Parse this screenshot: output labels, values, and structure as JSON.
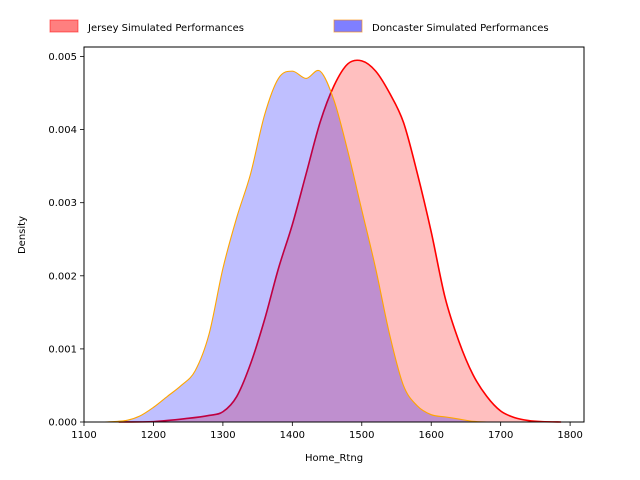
{
  "chart_data": {
    "type": "area",
    "xlabel": "Home_Rtng",
    "ylabel": "Density",
    "xlim": [
      1100,
      1820
    ],
    "ylim": [
      0,
      0.00513
    ],
    "xticks": [
      1100,
      1200,
      1300,
      1400,
      1500,
      1600,
      1700,
      1800
    ],
    "xtick_labels": [
      "1100",
      "1200",
      "1300",
      "1400",
      "1500",
      "1600",
      "1700",
      "1800"
    ],
    "yticks": [
      0,
      0.001,
      0.002,
      0.003,
      0.004,
      0.005
    ],
    "ytick_labels": [
      "0.000",
      "0.001",
      "0.002",
      "0.003",
      "0.004",
      "0.005"
    ],
    "legend_placement": "top-center, above plot",
    "grid": false,
    "series": [
      {
        "name": "Jersey Simulated Performances",
        "fill_color": "#ff0000",
        "line_color": "#ff0000",
        "fill_alpha": 0.25,
        "x": [
          1150,
          1200,
          1250,
          1280,
          1300,
          1320,
          1340,
          1360,
          1380,
          1400,
          1420,
          1440,
          1460,
          1480,
          1500,
          1520,
          1540,
          1560,
          1580,
          1600,
          1620,
          1640,
          1660,
          1680,
          1700,
          1720,
          1740,
          1760,
          1787
        ],
        "values": [
          0,
          5e-06,
          5e-05,
          9e-05,
          0.00014,
          0.00035,
          0.0008,
          0.0014,
          0.0021,
          0.0027,
          0.0034,
          0.0041,
          0.0046,
          0.0049,
          0.00494,
          0.0048,
          0.0045,
          0.0041,
          0.0034,
          0.0026,
          0.0017,
          0.0011,
          0.00065,
          0.00035,
          0.00015,
          6e-05,
          2e-05,
          5e-06,
          0
        ]
      },
      {
        "name": "Doncaster Simulated Performances",
        "fill_color": "#0000ff",
        "line_color": "#ffa500",
        "fill_alpha": 0.25,
        "x": [
          1130,
          1160,
          1180,
          1200,
          1220,
          1240,
          1260,
          1280,
          1300,
          1320,
          1340,
          1360,
          1380,
          1400,
          1420,
          1440,
          1460,
          1480,
          1500,
          1520,
          1540,
          1560,
          1580,
          1600,
          1620,
          1640,
          1660,
          1680
        ],
        "values": [
          0,
          2e-05,
          8e-05,
          0.0002,
          0.00035,
          0.0005,
          0.0007,
          0.0012,
          0.0021,
          0.0028,
          0.0034,
          0.0042,
          0.0047,
          0.0048,
          0.0047,
          0.0048,
          0.0044,
          0.0037,
          0.0029,
          0.0021,
          0.0012,
          0.0005,
          0.00022,
          0.0001,
          7e-05,
          4e-05,
          1e-05,
          0
        ]
      }
    ]
  }
}
